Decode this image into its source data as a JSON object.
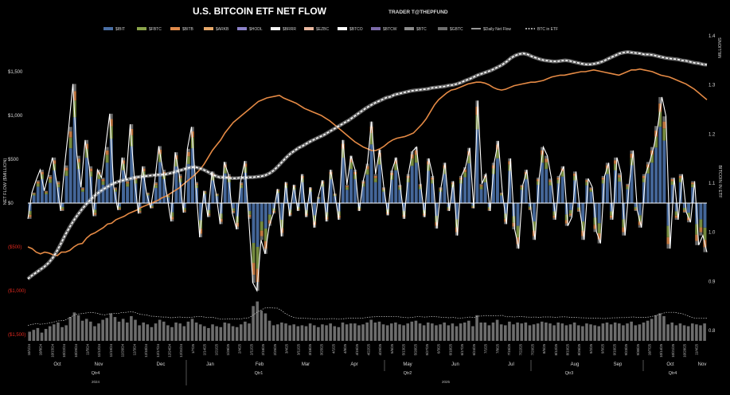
{
  "chart_data": {
    "type": "bar",
    "title": "U.S. BITCOIN ETF NET FLOW",
    "subtitle": "TRADER T@THEPFUND",
    "ylabel": "NET FLOW ($MILLION)",
    "y2label": "BITCOIN IN ETF",
    "y2unit": "MILLIONS",
    "legend": [
      "$IBIT",
      "$FBTC",
      "$BITB",
      "$ARKB",
      "$HODL",
      "$BRRR",
      "$EZBC",
      "$BTCO",
      "$BTCW",
      "$BTC",
      "$GBTC",
      "$Daily Net Flow",
      "BTC in ETF"
    ],
    "legend_colors": [
      "#4a6fa5",
      "#8aa34a",
      "#e08a4a",
      "#e7a86a",
      "#8c82c8",
      "#f2f2f2",
      "#e9b8a0",
      "#ffffff",
      "#7b6aa8",
      "#8c8c8c",
      "#6e6e6e",
      "#ffffff",
      "#ffffff"
    ],
    "legend_placement": "top",
    "y_ticks": [
      {
        "label": "$1,500",
        "value": 1500,
        "negative": false
      },
      {
        "label": "$1,000",
        "value": 1000,
        "negative": false
      },
      {
        "label": "$500",
        "value": 500,
        "negative": false
      },
      {
        "label": "$0",
        "value": 0,
        "negative": false
      },
      {
        "label": "($500)",
        "value": -500,
        "negative": true
      },
      {
        "label": "($1,000)",
        "value": -1000,
        "negative": true
      },
      {
        "label": "($1,500)",
        "value": -1500,
        "negative": true
      }
    ],
    "ylim": [
      -1500,
      1500
    ],
    "y2_ticks": [
      {
        "label": "1.4",
        "value": 1.4
      },
      {
        "label": "1.3",
        "value": 1.3
      },
      {
        "label": "1.2",
        "value": 1.2
      },
      {
        "label": "1.1",
        "value": 1.1
      },
      {
        "label": "1.0",
        "value": 1.0
      },
      {
        "label": "0.9",
        "value": 0.9
      },
      {
        "label": "0.8",
        "value": 0.8
      }
    ],
    "y2lim": [
      0.8,
      1.4
    ],
    "x_date_labels": [
      "10/1/24",
      "10/8/24",
      "10/15/24",
      "10/22/24",
      "10/29/24",
      "11/5/24",
      "11/12/24",
      "11/19/24",
      "11/26/24",
      "12/3/24",
      "12/10/24",
      "12/17/24",
      "12/24/24",
      "12/31/24",
      "1/7/25",
      "1/14/25",
      "1/21/25",
      "1/28/25",
      "2/4/25",
      "2/11/25",
      "2/18/25",
      "2/25/25",
      "3/4/25",
      "3/11/25",
      "3/18/25",
      "3/25/25",
      "4/1/25",
      "4/8/25",
      "4/15/25",
      "4/22/25",
      "4/29/25",
      "5/6/25",
      "5/13/25",
      "5/20/25",
      "5/27/25",
      "6/3/25",
      "6/10/25",
      "6/17/25",
      "6/24/25",
      "7/1/25",
      "7/8/25",
      "7/15/25",
      "7/22/25",
      "7/29/25",
      "8/5/25",
      "8/12/25",
      "8/19/25",
      "8/26/25",
      "9/2/25",
      "9/9/25",
      "9/16/25",
      "9/23/25",
      "9/30/25",
      "10/7/25",
      "10/14/25",
      "10/21/25",
      "10/28/25",
      "11/4/25"
    ],
    "months": [
      "Oct",
      "Nov",
      "Dec",
      "Jan",
      "Feb",
      "Mar",
      "Apr",
      "May",
      "Jun",
      "Jul",
      "Aug",
      "Sep",
      "Oct",
      "Nov"
    ],
    "quarters": [
      "Qtr4",
      "Qtr1",
      "Qtr2",
      "Qtr3",
      "Qtr4"
    ],
    "years": [
      "2024",
      "2025"
    ],
    "daily_net_flow": [
      -180,
      120,
      260,
      380,
      140,
      320,
      520,
      250,
      -90,
      430,
      870,
      1360,
      540,
      180,
      720,
      420,
      -150,
      380,
      290,
      640,
      1020,
      180,
      -80,
      520,
      260,
      900,
      310,
      -120,
      420,
      120,
      -60,
      240,
      650,
      380,
      90,
      -210,
      580,
      330,
      -110,
      620,
      870,
      240,
      -390,
      140,
      -160,
      360,
      110,
      -240,
      470,
      330,
      -120,
      -300,
      240,
      480,
      -180,
      -910,
      -1000,
      -420,
      -580,
      -260,
      -120,
      160,
      -380,
      240,
      -150,
      210,
      -90,
      330,
      -160,
      180,
      -280,
      70,
      260,
      -210,
      380,
      110,
      -190,
      720,
      210,
      540,
      380,
      -90,
      260,
      450,
      930,
      330,
      610,
      180,
      -140,
      370,
      520,
      210,
      -180,
      330,
      590,
      640,
      220,
      -160,
      510,
      310,
      -290,
      180,
      460,
      -90,
      250,
      -370,
      310,
      410,
      630,
      -60,
      1170,
      220,
      330,
      -90,
      460,
      710,
      120,
      -240,
      510,
      -300,
      -520,
      210,
      380,
      -80,
      -420,
      290,
      640,
      540,
      280,
      -190,
      310,
      420,
      -260,
      -160,
      360,
      -100,
      -420,
      280,
      180,
      -330,
      -460,
      310,
      460,
      -190,
      520,
      340,
      -370,
      220,
      600,
      -90,
      -280,
      330,
      470,
      640,
      880,
      1210,
      990,
      -520,
      290,
      -190,
      330,
      -110,
      -220,
      250,
      -480,
      -370,
      -560
    ],
    "btc_in_etf": [
      0.905,
      0.912,
      0.918,
      0.924,
      0.93,
      0.938,
      0.948,
      0.962,
      0.978,
      0.995,
      1.01,
      1.024,
      1.036,
      1.047,
      1.057,
      1.066,
      1.074,
      1.081,
      1.087,
      1.092,
      1.097,
      1.101,
      1.104,
      1.106,
      1.108,
      1.11,
      1.112,
      1.113,
      1.114,
      1.115,
      1.116,
      1.117,
      1.117,
      1.118,
      1.12,
      1.122,
      1.125,
      1.127,
      1.13,
      1.132,
      1.133,
      1.131,
      1.128,
      1.124,
      1.119,
      1.115,
      1.112,
      1.112,
      1.111,
      1.11,
      1.11,
      1.111,
      1.111,
      1.112,
      1.112,
      1.113,
      1.114,
      1.116,
      1.12,
      1.126,
      1.134,
      1.143,
      1.152,
      1.16,
      1.166,
      1.172,
      1.176,
      1.181,
      1.186,
      1.19,
      1.194,
      1.198,
      1.203,
      1.208,
      1.213,
      1.218,
      1.223,
      1.228,
      1.234,
      1.24,
      1.246,
      1.252,
      1.257,
      1.262,
      1.266,
      1.27,
      1.274,
      1.276,
      1.28,
      1.282,
      1.284,
      1.286,
      1.288,
      1.289,
      1.29,
      1.291,
      1.292,
      1.294,
      1.295,
      1.296,
      1.297,
      1.299,
      1.3,
      1.302,
      1.305,
      1.309,
      1.312,
      1.316,
      1.32,
      1.323,
      1.326,
      1.329,
      1.333,
      1.337,
      1.342,
      1.348,
      1.355,
      1.36,
      1.363,
      1.364,
      1.362,
      1.358,
      1.355,
      1.352,
      1.35,
      1.349,
      1.348,
      1.348,
      1.349,
      1.35,
      1.349,
      1.347,
      1.345,
      1.343,
      1.342,
      1.342,
      1.343,
      1.345,
      1.348,
      1.352,
      1.356,
      1.36,
      1.364,
      1.366,
      1.367,
      1.366,
      1.365,
      1.364,
      1.362,
      1.362,
      1.361,
      1.359,
      1.357,
      1.355,
      1.354,
      1.353,
      1.352,
      1.35,
      1.349,
      1.347,
      1.345,
      1.344,
      1.342,
      1.341
    ],
    "bitb_cumulative": [
      -500,
      -520,
      -560,
      -580,
      -560,
      -570,
      -590,
      -600,
      -560,
      -560,
      -540,
      -500,
      -470,
      -460,
      -400,
      -360,
      -340,
      -310,
      -280,
      -240,
      -230,
      -190,
      -170,
      -150,
      -120,
      -100,
      -80,
      -50,
      -30,
      -10,
      10,
      30,
      60,
      80,
      110,
      140,
      170,
      210,
      250,
      290,
      330,
      380,
      440,
      520,
      600,
      660,
      720,
      800,
      860,
      920,
      960,
      1000,
      1040,
      1080,
      1120,
      1160,
      1180,
      1200,
      1210,
      1220,
      1230,
      1200,
      1180,
      1160,
      1140,
      1110,
      1080,
      1060,
      1040,
      1020,
      1000,
      970,
      940,
      900,
      860,
      820,
      780,
      740,
      700,
      670,
      640,
      620,
      600,
      600,
      620,
      650,
      690,
      720,
      740,
      750,
      760,
      780,
      800,
      850,
      900,
      960,
      1040,
      1120,
      1180,
      1220,
      1260,
      1290,
      1300,
      1320,
      1340,
      1360,
      1370,
      1380,
      1380,
      1370,
      1350,
      1320,
      1300,
      1290,
      1300,
      1320,
      1340,
      1350,
      1360,
      1370,
      1380,
      1380,
      1390,
      1400,
      1420,
      1440,
      1450,
      1460,
      1460,
      1470,
      1480,
      1490,
      1500,
      1500,
      1510,
      1520,
      1510,
      1500,
      1490,
      1480,
      1470,
      1460,
      1480,
      1500,
      1520,
      1520,
      1530,
      1520,
      1510,
      1500,
      1480,
      1460,
      1450,
      1440,
      1420,
      1400,
      1380,
      1360,
      1330,
      1300,
      1260,
      1220,
      1180
    ],
    "volume": [
      100,
      120,
      140,
      90,
      130,
      160,
      180,
      200,
      150,
      170,
      260,
      310,
      280,
      220,
      240,
      210,
      160,
      190,
      230,
      250,
      300,
      260,
      210,
      240,
      200,
      270,
      230,
      170,
      200,
      180,
      150,
      190,
      230,
      210,
      170,
      150,
      200,
      190,
      160,
      210,
      240,
      200,
      180,
      160,
      140,
      180,
      160,
      150,
      200,
      190,
      160,
      150,
      180,
      210,
      190,
      380,
      430,
      330,
      300,
      220,
      170,
      180,
      200,
      190,
      170,
      180,
      160,
      170,
      160,
      190,
      170,
      150,
      180,
      170,
      190,
      160,
      150,
      200,
      180,
      190,
      190,
      170,
      180,
      200,
      230,
      200,
      210,
      180,
      170,
      190,
      200,
      180,
      170,
      190,
      210,
      220,
      190,
      170,
      200,
      190,
      170,
      180,
      200,
      170,
      190,
      160,
      190,
      200,
      220,
      160,
      280,
      200,
      200,
      170,
      200,
      230,
      180,
      170,
      210,
      180,
      200,
      190,
      200,
      170,
      180,
      190,
      210,
      200,
      190,
      170,
      200,
      190,
      170,
      180,
      200,
      170,
      160,
      190,
      180,
      170,
      160,
      190,
      200,
      180,
      200,
      190,
      170,
      190,
      210,
      170,
      180,
      200,
      220,
      240,
      280,
      300,
      270,
      180,
      200,
      170,
      190,
      170,
      160,
      190,
      180,
      170,
      190
    ]
  }
}
